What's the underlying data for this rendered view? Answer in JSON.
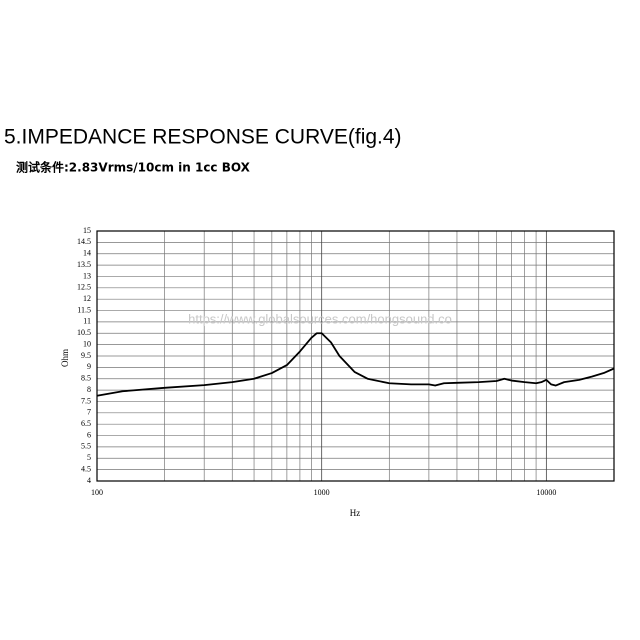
{
  "chart_data": {
    "type": "line",
    "title": "5.IMPEDANCE RESPONSE CURVE(fig.4)",
    "subtitle": "测试条件:2.83Vrms/10cm in 1cc BOX",
    "annotation": "https://www.globalsources.com/hongsound.co",
    "x_label": "Hz",
    "y_label": "Ohm",
    "x_log": true,
    "minor_grid": true,
    "grid": true,
    "color": "#000000",
    "xlim": [
      100,
      20000
    ],
    "xticks": [
      100,
      1000,
      10000
    ],
    "ylim": [
      4,
      15
    ],
    "yticks": [
      4,
      4.5,
      5,
      5.5,
      6,
      6.5,
      7,
      7.5,
      8,
      8.5,
      9,
      9.5,
      10,
      10.5,
      11,
      11.5,
      12,
      12.5,
      13,
      13.5,
      14,
      14.5,
      15
    ],
    "x": [
      100,
      130,
      200,
      300,
      400,
      500,
      600,
      700,
      800,
      900,
      950,
      1000,
      1100,
      1200,
      1400,
      1600,
      2000,
      2500,
      3000,
      3200,
      3500,
      4000,
      5000,
      6000,
      6500,
      7000,
      8000,
      9000,
      9500,
      10000,
      10500,
      11000,
      12000,
      14000,
      16000,
      18000,
      20000
    ],
    "values": [
      7.75,
      7.95,
      8.1,
      8.22,
      8.35,
      8.5,
      8.75,
      9.1,
      9.7,
      10.3,
      10.5,
      10.5,
      10.1,
      9.5,
      8.8,
      8.5,
      8.3,
      8.25,
      8.25,
      8.2,
      8.3,
      8.32,
      8.35,
      8.4,
      8.5,
      8.42,
      8.35,
      8.3,
      8.35,
      8.45,
      8.25,
      8.2,
      8.35,
      8.45,
      8.6,
      8.75,
      8.95
    ]
  }
}
